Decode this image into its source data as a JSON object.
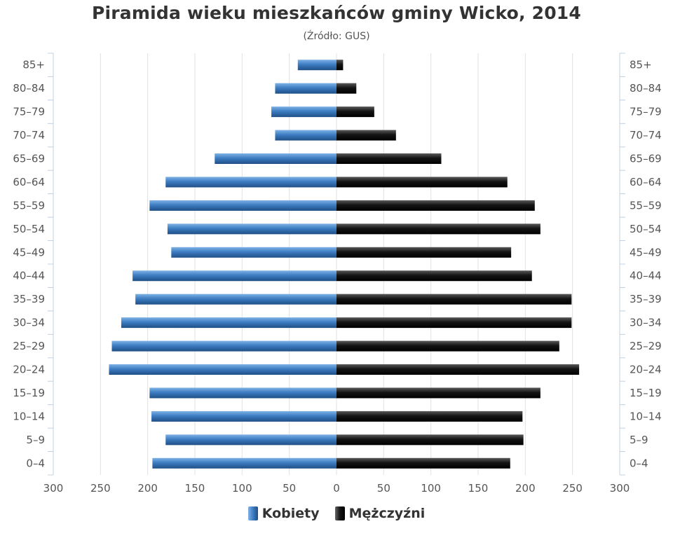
{
  "chart_data": {
    "type": "bar",
    "orientation": "horizontal-pyramid",
    "title": "Piramida wieku mieszkańców gminy Wicko, 2014",
    "subtitle": "(Źródło: GUS)",
    "categories": [
      "85+",
      "80–84",
      "75–79",
      "70–74",
      "65–69",
      "60–64",
      "55–59",
      "50–54",
      "45–49",
      "40–44",
      "35–39",
      "30–34",
      "25–29",
      "20–24",
      "15–19",
      "10–14",
      "5–9",
      "0–4"
    ],
    "series": [
      {
        "name": "Kobiety",
        "color": "#3d7dc2",
        "values": [
          41,
          65,
          69,
          65,
          129,
          181,
          198,
          179,
          175,
          216,
          213,
          228,
          238,
          241,
          198,
          196,
          181,
          195
        ]
      },
      {
        "name": "Mężczyźni",
        "color": "#111111",
        "values": [
          7,
          21,
          40,
          63,
          111,
          181,
          210,
          216,
          185,
          207,
          249,
          249,
          236,
          257,
          216,
          197,
          198,
          184
        ]
      }
    ],
    "xlim": [
      -300,
      300
    ],
    "x_ticks": [
      -300,
      -250,
      -200,
      -150,
      -100,
      -50,
      0,
      50,
      100,
      150,
      200,
      250,
      300
    ],
    "x_tick_labels": [
      "300",
      "250",
      "200",
      "150",
      "100",
      "50",
      "0",
      "50",
      "100",
      "150",
      "200",
      "250",
      "300"
    ],
    "grid": true,
    "legend_position": "bottom-center"
  }
}
